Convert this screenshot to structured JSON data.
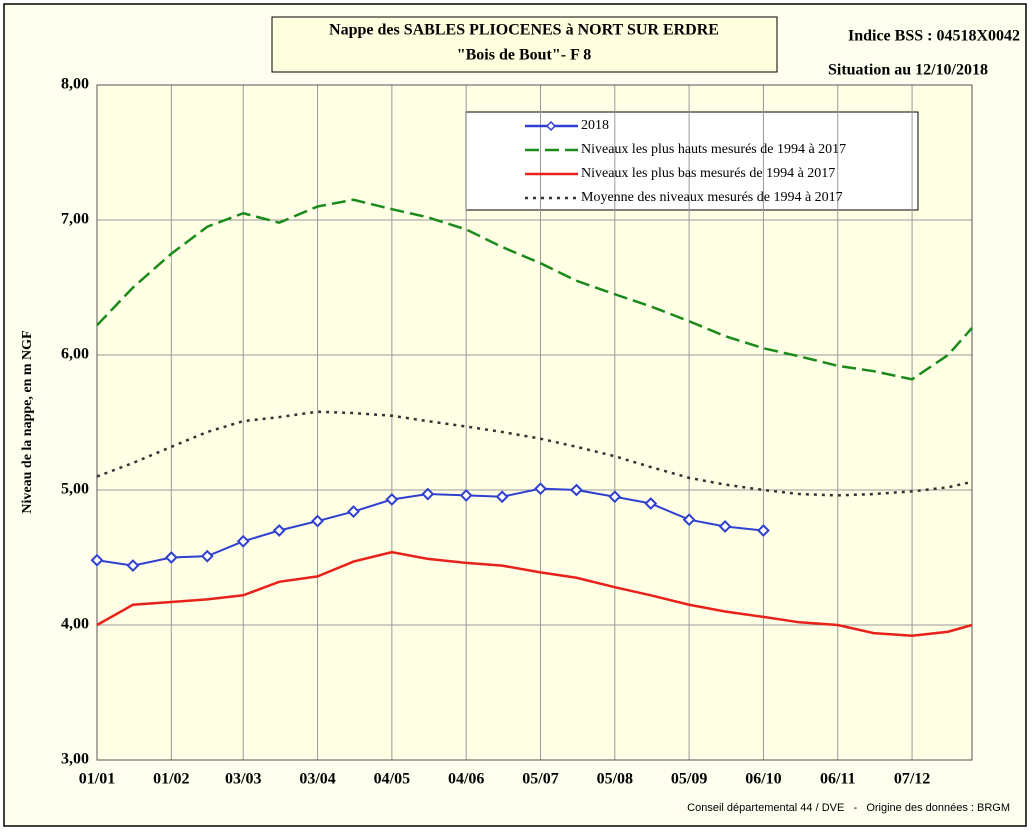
{
  "chart_data": {
    "type": "line",
    "title": "Nappe des SABLES PLIOCENES à NORT SUR ERDRE",
    "subtitle": "\"Bois de Bout\"-  F 8",
    "annotations": [
      "Indice BSS : 04518X0042",
      "Situation au 12/10/2018"
    ],
    "source": "Conseil départemental 44 / DVE   -   Origine des données : BRGM",
    "y_label": "Niveau de la nappe, en m NGF",
    "x": [
      0,
      15,
      31,
      46,
      61,
      76,
      92,
      107,
      123,
      138,
      154,
      169,
      185,
      200,
      216,
      231,
      247,
      262,
      278,
      293,
      309,
      324,
      340,
      355,
      365
    ],
    "xlim": [
      0,
      365
    ],
    "xticks": [
      {
        "value": 0,
        "label": "01/01"
      },
      {
        "value": 31,
        "label": "01/02"
      },
      {
        "value": 61,
        "label": "03/03"
      },
      {
        "value": 92,
        "label": "03/04"
      },
      {
        "value": 123,
        "label": "04/05"
      },
      {
        "value": 154,
        "label": "04/06"
      },
      {
        "value": 185,
        "label": "05/07"
      },
      {
        "value": 216,
        "label": "05/08"
      },
      {
        "value": 247,
        "label": "05/09"
      },
      {
        "value": 278,
        "label": "06/10"
      },
      {
        "value": 309,
        "label": "06/11"
      },
      {
        "value": 340,
        "label": "07/12"
      }
    ],
    "ylim": [
      3,
      8
    ],
    "yticks": [
      {
        "value": 3,
        "label": "3,00"
      },
      {
        "value": 4,
        "label": "4,00"
      },
      {
        "value": 5,
        "label": "5,00"
      },
      {
        "value": 6,
        "label": "6,00"
      },
      {
        "value": 7,
        "label": "7,00"
      },
      {
        "value": 8,
        "label": "8,00"
      }
    ],
    "grid": true,
    "series": [
      {
        "name": "2018",
        "color": "#2f3fd0",
        "style": "solid",
        "marker": "diamond",
        "values": [
          4.48,
          4.44,
          4.5,
          4.51,
          4.62,
          4.7,
          4.77,
          4.84,
          4.93,
          4.97,
          4.96,
          4.95,
          5.01,
          5.0,
          4.95,
          4.9,
          4.78,
          4.73,
          4.7,
          null,
          null,
          null,
          null,
          null,
          null
        ]
      },
      {
        "name": "Niveaux les plus hauts mesurés de 1994 à 2017",
        "color": "#1a8a1a",
        "style": "dashed",
        "values": [
          6.22,
          6.5,
          6.75,
          6.95,
          7.05,
          6.98,
          7.1,
          7.15,
          7.08,
          7.02,
          6.93,
          6.8,
          6.68,
          6.55,
          6.45,
          6.36,
          6.25,
          6.14,
          6.05,
          5.99,
          5.92,
          5.88,
          5.82,
          6.0,
          6.2
        ]
      },
      {
        "name": "Niveaux les plus bas mesurés de 1994 à 2017",
        "color": "#e8221b",
        "style": "solid",
        "values": [
          4.0,
          4.15,
          4.17,
          4.19,
          4.22,
          4.32,
          4.36,
          4.47,
          4.54,
          4.49,
          4.46,
          4.44,
          4.39,
          4.35,
          4.28,
          4.22,
          4.15,
          4.1,
          4.06,
          4.02,
          4.0,
          3.94,
          3.92,
          3.95,
          4.0
        ]
      },
      {
        "name": "Moyenne des niveaux mesurés de 1994 à 2017",
        "color": "#333333",
        "style": "dotted",
        "values": [
          5.1,
          5.2,
          5.32,
          5.43,
          5.51,
          5.54,
          5.58,
          5.57,
          5.55,
          5.51,
          5.47,
          5.43,
          5.38,
          5.32,
          5.25,
          5.17,
          5.09,
          5.04,
          5.0,
          4.97,
          4.96,
          4.97,
          4.99,
          5.02,
          5.06
        ]
      }
    ]
  }
}
